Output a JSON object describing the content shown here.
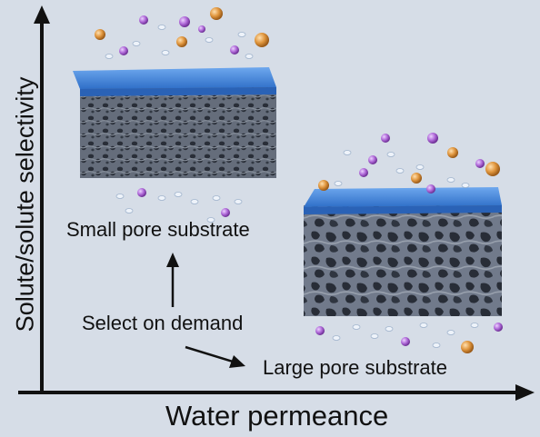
{
  "axes": {
    "x_label": "Water permeance",
    "y_label": "Solute/solute selectivity"
  },
  "labels": {
    "small_pore": "Small pore substrate",
    "select": "Select on demand",
    "large_pore": "Large pore substrate"
  },
  "colors": {
    "background": "#d6dde7",
    "membrane_top": "#3d7fd6",
    "substrate": "#6b7585",
    "solute_purple": "#b06ad9",
    "solute_orange": "#e0963e",
    "water": "#e8eef6"
  }
}
